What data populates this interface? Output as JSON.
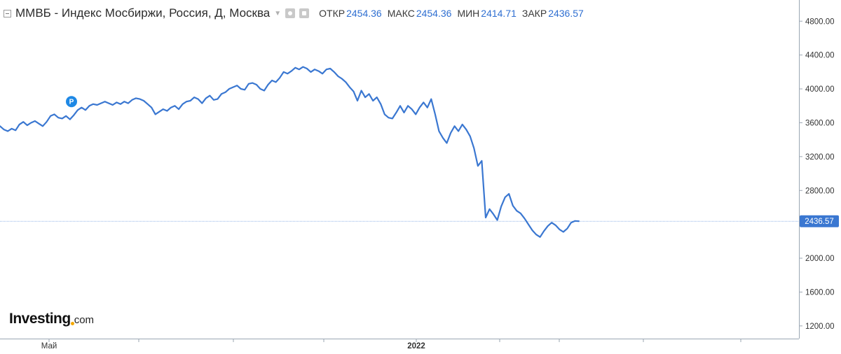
{
  "header": {
    "title": "ММВБ - Индекс Мосбиржи, Россия, Д, Москва",
    "ohlc": [
      {
        "label": "ОТКР",
        "value": "2454.36"
      },
      {
        "label": "МАКС",
        "value": "2454.36"
      },
      {
        "label": "МИН",
        "value": "2414.71"
      },
      {
        "label": "ЗАКР",
        "value": "2436.57"
      }
    ]
  },
  "logo": {
    "main": "Investing",
    "sub": "com"
  },
  "chart_data": {
    "type": "line",
    "title": "ММВБ - Индекс Мосбиржи, Россия, Д, Москва",
    "xlabel": "",
    "ylabel": "",
    "ylim": [
      1050,
      5050
    ],
    "y_ticks": [
      "4800.00",
      "4400.00",
      "4000.00",
      "3600.00",
      "3200.00",
      "2800.00",
      "2000.00",
      "1600.00",
      "1200.00"
    ],
    "x_tick_labels": [
      "Май",
      "2022"
    ],
    "last_value_label": "2436.57",
    "marker": {
      "label": "P",
      "value": 3850
    },
    "grid": false,
    "legend": "none",
    "line_color": "#3a77d1",
    "series": [
      {
        "values": [
          3560,
          3520,
          3500,
          3530,
          3510,
          3580,
          3610,
          3570,
          3600,
          3620,
          3590,
          3560,
          3610,
          3680,
          3700,
          3660,
          3650,
          3680,
          3640,
          3690,
          3750,
          3780,
          3750,
          3800,
          3820,
          3810,
          3830,
          3850,
          3830,
          3810,
          3840,
          3820,
          3850,
          3830,
          3870,
          3890,
          3880,
          3860,
          3820,
          3780,
          3700,
          3730,
          3760,
          3740,
          3780,
          3800,
          3760,
          3820,
          3850,
          3860,
          3900,
          3880,
          3830,
          3890,
          3920,
          3870,
          3880,
          3940,
          3960,
          4000,
          4020,
          4040,
          4000,
          3990,
          4060,
          4070,
          4050,
          4000,
          3980,
          4050,
          4100,
          4080,
          4130,
          4200,
          4180,
          4210,
          4250,
          4230,
          4260,
          4240,
          4200,
          4230,
          4210,
          4180,
          4230,
          4240,
          4200,
          4150,
          4120,
          4080,
          4020,
          3970,
          3860,
          3980,
          3900,
          3940,
          3860,
          3900,
          3820,
          3700,
          3660,
          3650,
          3720,
          3800,
          3720,
          3800,
          3760,
          3700,
          3780,
          3840,
          3780,
          3880,
          3700,
          3500,
          3420,
          3360,
          3480,
          3560,
          3500,
          3580,
          3520,
          3440,
          3300,
          3090,
          3150,
          2480,
          2580,
          2520,
          2450,
          2610,
          2720,
          2760,
          2620,
          2560,
          2530,
          2470,
          2400,
          2330,
          2280,
          2250,
          2320,
          2380,
          2420,
          2390,
          2340,
          2310,
          2350,
          2420,
          2440,
          2436.57
        ]
      }
    ]
  },
  "colors": {
    "line": "#3a77d1",
    "price_line": "#6f9ee0",
    "last_label_bg": "#3a77d1",
    "marker": "#1e88e5",
    "axis": "#9aa6b2",
    "ohlc_value": "#2f6fd1",
    "logo_dot": "#f5a800"
  },
  "icons": [
    "collapse-icon",
    "caret-down-icon",
    "eye-icon",
    "gear-icon"
  ]
}
